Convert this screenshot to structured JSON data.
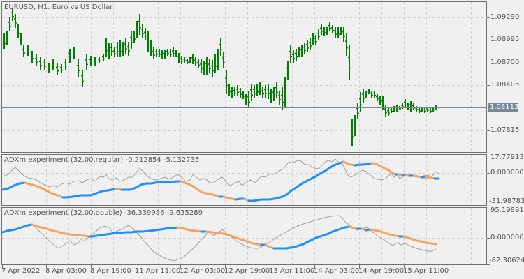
{
  "main_pane": {
    "title": "EURUSD, H1:  Euro vs US Dollar",
    "price_scale": [
      "1.09290",
      "1.08995",
      "1.08700",
      "1.08405",
      "1.07815"
    ],
    "current_price": "1.08113",
    "bar_color": "#008000"
  },
  "indicator1": {
    "title": "ADXm experiment (32.00,regular) -0.212854 -5.132735",
    "scale": [
      "17.779135",
      "0.000000",
      "-31.987830"
    ]
  },
  "indicator2": {
    "title": "ADXm experiment (32.00,double) -36.339986 -9.635289",
    "scale": [
      "95.198915",
      "0.000000",
      "-82.306242"
    ]
  },
  "time_axis": [
    "7 Apr 2022",
    "8 Apr 03:00",
    "8 Apr 19:00",
    "11 Apr 11:00",
    "12 Apr 03:00",
    "12 Apr 19:00",
    "13 Apr 11:00",
    "14 Apr 03:00",
    "14 Apr 19:00",
    "15 Apr 11:00"
  ],
  "colors": {
    "up": "#1e90ff",
    "down": "#f4a460",
    "signal": "#a0a0a0",
    "grid": "#d3d3d3",
    "frame": "#707070"
  }
}
